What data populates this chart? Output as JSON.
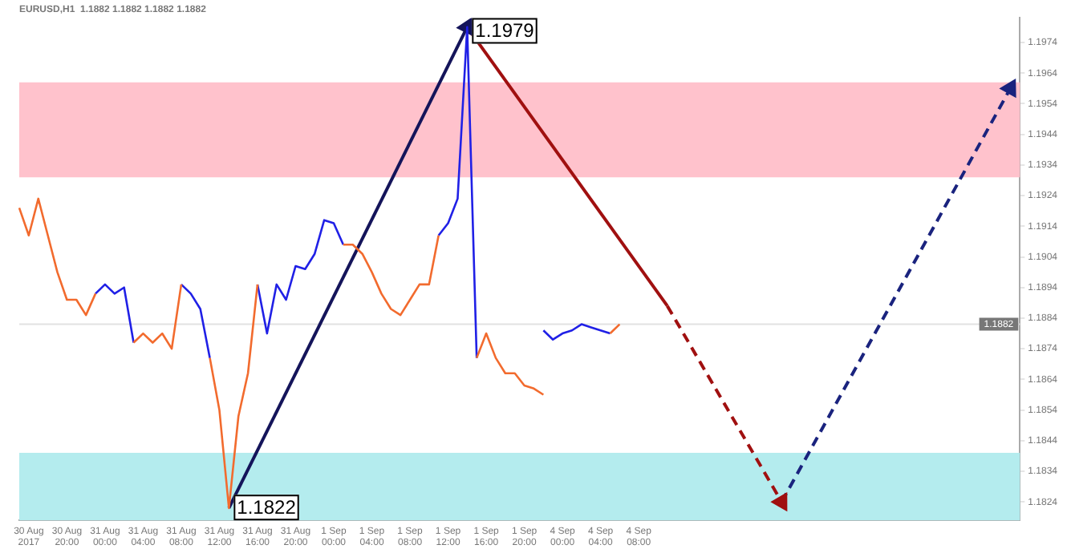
{
  "chart_data": {
    "type": "line",
    "title": "EURUSD,H1  1.1882 1.1882 1.1882 1.1882",
    "categories": [
      null,
      "30 Aug 2017",
      null,
      null,
      null,
      "30 Aug 20:00",
      null,
      null,
      null,
      "31 Aug 00:00",
      null,
      null,
      null,
      "31 Aug 04:00",
      null,
      null,
      null,
      "31 Aug 08:00",
      null,
      null,
      null,
      "31 Aug 12:00",
      null,
      null,
      null,
      "31 Aug 16:00",
      null,
      null,
      null,
      "31 Aug 20:00",
      null,
      null,
      null,
      "1 Sep 00:00",
      null,
      null,
      null,
      "1 Sep 04:00",
      null,
      null,
      null,
      "1 Sep 08:00",
      null,
      null,
      null,
      "1 Sep 12:00",
      null,
      null,
      null,
      "1 Sep 16:00",
      null,
      null,
      null,
      "1 Sep 20:00",
      null,
      null,
      null,
      "4 Sep 00:00",
      null,
      null,
      null,
      "4 Sep 04:00",
      null,
      null,
      null,
      "4 Sep 08:00",
      null,
      null,
      null,
      null,
      null,
      null,
      null,
      null,
      null,
      null,
      null,
      null,
      null,
      null,
      null,
      null,
      null,
      null,
      null,
      null,
      null,
      null,
      null,
      null,
      null,
      null,
      null,
      null,
      null,
      null,
      null,
      null,
      null,
      null,
      null,
      null,
      null,
      null,
      null,
      null
    ],
    "series": [
      {
        "color": "#f26b2e",
        "values": [
          1.192,
          1.1911,
          1.1923,
          1.1911,
          1.1899,
          1.189,
          1.189,
          1.1885,
          1.1892,
          null,
          null,
          null,
          1.1876,
          1.1879,
          1.1876,
          1.1879,
          1.1874,
          1.1895,
          null,
          null,
          1.1871,
          1.1854,
          1.1822,
          1.1852,
          1.1866,
          1.1895,
          null,
          null,
          null,
          null,
          null,
          null,
          null,
          null,
          1.1908,
          1.1908,
          1.1905,
          1.1899,
          1.1892,
          1.1887,
          1.1885,
          1.189,
          1.1895,
          1.1895,
          1.1911,
          null,
          null,
          null,
          1.1871,
          1.1879,
          1.1871,
          1.1866,
          1.1866,
          1.1862,
          1.1861,
          1.1859,
          null,
          null,
          null,
          null,
          null,
          null,
          1.1879,
          1.1882,
          null,
          null,
          null,
          null,
          null,
          null,
          null,
          null,
          null,
          null,
          null,
          null,
          null,
          null,
          null,
          null,
          null,
          null,
          null,
          null,
          null,
          null,
          null,
          null,
          null,
          null,
          null,
          null,
          null,
          null,
          null,
          null,
          null,
          null,
          null,
          null,
          null,
          null,
          null,
          null,
          null,
          null
        ]
      },
      {
        "color": "#2020e6",
        "values": [
          null,
          null,
          null,
          null,
          null,
          null,
          null,
          null,
          1.1892,
          1.1895,
          1.1892,
          1.1894,
          1.1876,
          null,
          null,
          null,
          null,
          1.1895,
          1.1892,
          1.1887,
          1.1871,
          null,
          null,
          null,
          null,
          1.1895,
          1.1879,
          1.1895,
          1.189,
          1.1901,
          1.19,
          1.1905,
          1.1916,
          1.1915,
          1.1908,
          null,
          null,
          null,
          null,
          null,
          null,
          null,
          null,
          null,
          1.1911,
          1.1915,
          1.1923,
          1.1979,
          1.1871,
          null,
          null,
          null,
          null,
          null,
          null,
          1.188,
          1.1877,
          1.1879,
          1.188,
          1.1882,
          1.1881,
          1.188,
          1.1879,
          null,
          null,
          null,
          null,
          null,
          null,
          null,
          null,
          null,
          null,
          null,
          null,
          null,
          null,
          null,
          null,
          null,
          null,
          null,
          null,
          null,
          null,
          null,
          null,
          null,
          null,
          null,
          null,
          null,
          null,
          null,
          null,
          null,
          null,
          null,
          null,
          null,
          null,
          null,
          null,
          null,
          null,
          null
        ]
      },
      {
        "color": "#14145a",
        "line_style": "solid",
        "marker": "triangle",
        "values": [
          null,
          null,
          null,
          null,
          null,
          null,
          null,
          null,
          null,
          null,
          null,
          null,
          null,
          null,
          null,
          null,
          null,
          null,
          null,
          null,
          null,
          null,
          1.1822,
          null,
          null,
          null,
          null,
          null,
          null,
          null,
          null,
          null,
          null,
          null,
          null,
          null,
          null,
          null,
          null,
          null,
          null,
          null,
          null,
          null,
          null,
          null,
          null,
          1.1979,
          null,
          null,
          null,
          null,
          null,
          null,
          null,
          null,
          null,
          null,
          null,
          null,
          null,
          null,
          null,
          null,
          null,
          null,
          null,
          null,
          null,
          null,
          null,
          null,
          null,
          null,
          null,
          null,
          null,
          null,
          null,
          null,
          null,
          null,
          null,
          null,
          null,
          null,
          null,
          null,
          null,
          null,
          null,
          null,
          null,
          null,
          null,
          null,
          null,
          null,
          null,
          null,
          null,
          null,
          null,
          null,
          null,
          null
        ],
        "value_labels": [
          null,
          null,
          null,
          null,
          null,
          null,
          null,
          null,
          null,
          null,
          null,
          null,
          null,
          null,
          null,
          null,
          null,
          null,
          null,
          null,
          null,
          null,
          "1.1822",
          null,
          null,
          null,
          null,
          null,
          null,
          null,
          null,
          null,
          null,
          null,
          null,
          null,
          null,
          null,
          null,
          null,
          null,
          null,
          null,
          null,
          null,
          null,
          null,
          "1.1979",
          null,
          null,
          null,
          null,
          null,
          null,
          null,
          null,
          null,
          null,
          null,
          null,
          null,
          null,
          null,
          null,
          null,
          null,
          null,
          null,
          null,
          null,
          null,
          null,
          null,
          null,
          null,
          null,
          null,
          null,
          null,
          null,
          null,
          null,
          null,
          null,
          null,
          null,
          null,
          null,
          null,
          null,
          null,
          null,
          null,
          null,
          null,
          null,
          null,
          null,
          null,
          null,
          null,
          null,
          null,
          null,
          null,
          null
        ]
      },
      {
        "color": "#a01010",
        "line_style": "solid",
        "values": [
          null,
          null,
          null,
          null,
          null,
          null,
          null,
          null,
          null,
          null,
          null,
          null,
          null,
          null,
          null,
          null,
          null,
          null,
          null,
          null,
          null,
          null,
          null,
          null,
          null,
          null,
          null,
          null,
          null,
          null,
          null,
          null,
          null,
          null,
          null,
          null,
          null,
          null,
          null,
          null,
          null,
          null,
          null,
          null,
          null,
          null,
          null,
          1.1979,
          null,
          null,
          null,
          null,
          null,
          null,
          null,
          null,
          null,
          null,
          null,
          null,
          null,
          null,
          null,
          null,
          null,
          null,
          null,
          null,
          1.1888,
          null,
          null,
          null,
          null,
          null,
          null,
          null,
          null,
          null,
          null,
          null,
          null,
          null,
          null,
          null,
          null,
          null,
          null,
          null,
          null,
          null,
          null,
          null,
          null,
          null,
          null,
          null,
          null,
          null,
          null,
          null,
          null,
          null,
          null,
          null,
          null,
          null
        ]
      },
      {
        "color": "#a01010",
        "line_style": "dashed",
        "marker": "triangle",
        "values": [
          null,
          null,
          null,
          null,
          null,
          null,
          null,
          null,
          null,
          null,
          null,
          null,
          null,
          null,
          null,
          null,
          null,
          null,
          null,
          null,
          null,
          null,
          null,
          null,
          null,
          null,
          null,
          null,
          null,
          null,
          null,
          null,
          null,
          null,
          null,
          null,
          null,
          null,
          null,
          null,
          null,
          null,
          null,
          null,
          null,
          null,
          null,
          null,
          null,
          null,
          null,
          null,
          null,
          null,
          null,
          null,
          null,
          null,
          null,
          null,
          null,
          null,
          null,
          null,
          null,
          null,
          null,
          null,
          1.1888,
          null,
          null,
          null,
          null,
          null,
          null,
          null,
          null,
          null,
          null,
          null,
          1.1824,
          null,
          null,
          null,
          null,
          null,
          null,
          null,
          null,
          null,
          null,
          null,
          null,
          null,
          null,
          null,
          null,
          null,
          null,
          null,
          null,
          null,
          null,
          null,
          null,
          null
        ]
      },
      {
        "color": "#1a237e",
        "line_style": "dashed",
        "marker": "triangle",
        "values": [
          null,
          null,
          null,
          null,
          null,
          null,
          null,
          null,
          null,
          null,
          null,
          null,
          null,
          null,
          null,
          null,
          null,
          null,
          null,
          null,
          null,
          null,
          null,
          null,
          null,
          null,
          null,
          null,
          null,
          null,
          null,
          null,
          null,
          null,
          null,
          null,
          null,
          null,
          null,
          null,
          null,
          null,
          null,
          null,
          null,
          null,
          null,
          null,
          null,
          null,
          null,
          null,
          null,
          null,
          null,
          null,
          null,
          null,
          null,
          null,
          null,
          null,
          null,
          null,
          null,
          null,
          null,
          null,
          null,
          null,
          null,
          null,
          null,
          null,
          null,
          null,
          null,
          null,
          null,
          null,
          1.1824,
          null,
          null,
          null,
          null,
          null,
          null,
          null,
          null,
          null,
          null,
          null,
          null,
          null,
          null,
          null,
          null,
          null,
          null,
          null,
          null,
          null,
          null,
          null,
          1.1959,
          null
        ]
      }
    ],
    "ylim": [
      1.1818,
      1.1982
    ],
    "yticks": [
      1.1824,
      1.1834,
      1.1844,
      1.1854,
      1.1864,
      1.1874,
      1.1884,
      1.1894,
      1.1904,
      1.1914,
      1.1924,
      1.1934,
      1.1944,
      1.1954,
      1.1964,
      1.1974
    ],
    "bands": [
      {
        "axis": "y",
        "from": 1.193,
        "to": 1.1961,
        "color": "#ffc2cc"
      },
      {
        "axis": "y",
        "from": 1.1818,
        "to": 1.184,
        "color": "#b4ecee"
      }
    ],
    "ref_lines": [
      {
        "axis": "y",
        "value": 1.1882,
        "label": "1.1882",
        "color": "#e2e2e2"
      }
    ],
    "marker": "none",
    "grid": false,
    "legend": false
  }
}
